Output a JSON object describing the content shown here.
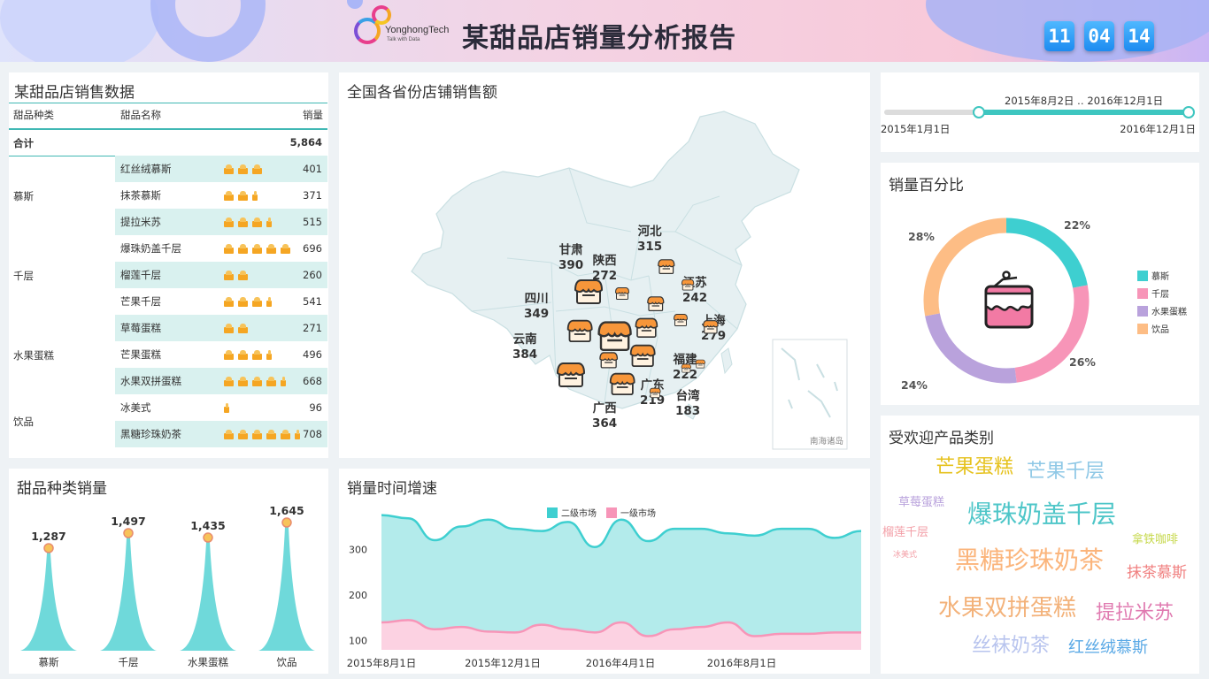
{
  "header": {
    "logo_text": "YonghongTech",
    "logo_sub": "Talk with Data",
    "title": "某甜品店销量分析报告",
    "clock": [
      "11",
      "04",
      "14"
    ]
  },
  "sales_table": {
    "title": "某甜品店销售数据",
    "headers": [
      "甜品种类",
      "甜品名称",
      "销量"
    ],
    "total_label": "合计",
    "total_value": "5,864",
    "categories": [
      "慕斯",
      "千层",
      "水果蛋糕",
      "饮品"
    ],
    "rows": [
      {
        "name": "红丝绒慕斯",
        "value": "401",
        "icons": 3.0
      },
      {
        "name": "抹茶慕斯",
        "value": "371",
        "icons": 2.5
      },
      {
        "name": "提拉米苏",
        "value": "515",
        "icons": 3.5
      },
      {
        "name": "爆珠奶盖千层",
        "value": "696",
        "icons": 5.0
      },
      {
        "name": "榴莲千层",
        "value": "260",
        "icons": 2.0
      },
      {
        "name": "芒果千层",
        "value": "541",
        "icons": 3.5
      },
      {
        "name": "草莓蛋糕",
        "value": "271",
        "icons": 2.0
      },
      {
        "name": "芒果蛋糕",
        "value": "496",
        "icons": 3.5
      },
      {
        "name": "水果双拼蛋糕",
        "value": "668",
        "icons": 4.5
      },
      {
        "name": "冰美式",
        "value": "96",
        "icons": 0.5
      },
      {
        "name": "黑糖珍珠奶茶",
        "value": "708",
        "icons": 5.5
      }
    ]
  },
  "map": {
    "title": "全国各省份店铺销售额",
    "inset_label": "南海诸岛",
    "provinces": [
      {
        "name": "甘肃",
        "value": "390"
      },
      {
        "name": "陕西",
        "value": "272"
      },
      {
        "name": "河北",
        "value": "315"
      },
      {
        "name": "江苏",
        "value": "242"
      },
      {
        "name": "四川",
        "value": "349"
      },
      {
        "name": "上海",
        "value": "279"
      },
      {
        "name": "云南",
        "value": "384"
      },
      {
        "name": "福建",
        "value": "222"
      },
      {
        "name": "广东",
        "value": "219"
      },
      {
        "name": "台湾",
        "value": "183"
      },
      {
        "name": "广西",
        "value": "364"
      }
    ]
  },
  "date_slider": {
    "selected": "2015年8月2日 ‥ 2016年12月1日",
    "min_label": "2015年1月1日",
    "max_label": "2016年12月1日",
    "range_start_frac": 0.31,
    "range_end_frac": 1.0
  },
  "pie": {
    "title": "销量百分比",
    "colors": [
      "#3ecfd0",
      "#f795b8",
      "#b9a2dc",
      "#fdbd85"
    ],
    "labels": [
      "22%",
      "26%",
      "24%",
      "28%"
    ],
    "legend": [
      "慕斯",
      "千层",
      "水果蛋糕",
      "饮品"
    ]
  },
  "wordcloud": {
    "title": "受欢迎产品类别",
    "words": [
      {
        "text": "芒果蛋糕",
        "color": "#e6c21e"
      },
      {
        "text": "芒果千层",
        "color": "#8fc8e6"
      },
      {
        "text": "草莓蛋糕",
        "color": "#b9a2dc"
      },
      {
        "text": "爆珠奶盖千层",
        "color": "#4ec6c8"
      },
      {
        "text": "榴莲千层",
        "color": "#f3a0a8"
      },
      {
        "text": "拿铁咖啡",
        "color": "#c6d84b"
      },
      {
        "text": "冰美式",
        "color": "#f3a0a8"
      },
      {
        "text": "黑糖珍珠奶茶",
        "color": "#fbb57c"
      },
      {
        "text": "抹茶慕斯",
        "color": "#f08080"
      },
      {
        "text": "水果双拼蛋糕",
        "color": "#f3b27a"
      },
      {
        "text": "提拉米苏",
        "color": "#e07ab0"
      },
      {
        "text": "丝袜奶茶",
        "color": "#b8c4ee"
      },
      {
        "text": "红丝绒慕斯",
        "color": "#5aa9e6"
      }
    ]
  },
  "category_chart": {
    "title": "甜品种类销量",
    "chart_data": {
      "type": "area",
      "categories": [
        "慕斯",
        "千层",
        "水果蛋糕",
        "饮品"
      ],
      "values": [
        1287,
        1497,
        1435,
        1645
      ],
      "value_labels": [
        "1,287",
        "1,497",
        "1,435",
        "1,645"
      ],
      "color": "#6fd9da"
    }
  },
  "growth_chart": {
    "title": "销量时间增速",
    "chart_data": {
      "type": "area",
      "x_ticks": [
        "2015年8月1日",
        "2015年12月1日",
        "2016年4月1日",
        "2016年8月1日"
      ],
      "y_ticks": [
        "100",
        "200",
        "300"
      ],
      "ylim": [
        80,
        380
      ],
      "series": [
        {
          "name": "二级市场",
          "color": "#3ecfd0",
          "values": [
            375,
            368,
            320,
            350,
            365,
            345,
            340,
            360,
            305,
            365,
            318,
            345,
            345,
            335,
            330,
            345,
            345,
            325,
            340
          ]
        },
        {
          "name": "一级市场",
          "color": "#f795b8",
          "values": [
            140,
            145,
            125,
            130,
            120,
            118,
            135,
            125,
            118,
            140,
            110,
            125,
            130,
            140,
            110,
            115,
            115,
            118,
            118
          ]
        }
      ]
    }
  }
}
